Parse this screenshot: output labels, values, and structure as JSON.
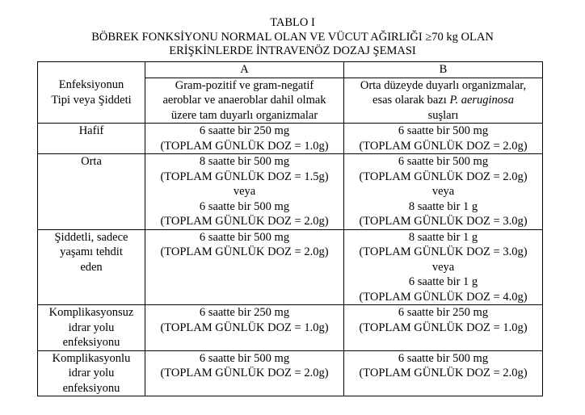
{
  "title": {
    "line1": "TABLO I",
    "line2": "BÖBREK FONKSİYONU NORMAL OLAN VE VÜCUT AĞIRLIĞI ≥70 kg OLAN",
    "line3": "ERİŞKİNLERDE İNTRAVENÖZ DOZAJ ŞEMASI"
  },
  "header": {
    "col_a_letter": "A",
    "col_b_letter": "B",
    "col0": [
      "Enfeksiyonun",
      "Tipi veya Şiddeti"
    ],
    "col_a": [
      "Gram-pozitif ve gram-negatif",
      "aeroblar ve anaeroblar dahil olmak",
      "üzere tam duyarlı organizmalar"
    ],
    "col_b_line1": "Orta düzeyde duyarlı organizmalar,",
    "col_b_line2_prefix": "esas olarak bazı ",
    "col_b_line2_italic": "P. aeruginosa",
    "col_b_line3": "suşları"
  },
  "rows": [
    {
      "type": [
        "Hafif"
      ],
      "a": [
        "6 saatte bir 250 mg",
        "(TOPLAM GÜNLÜK DOZ = 1.0g)"
      ],
      "b": [
        "6 saatte bir 500 mg",
        "(TOPLAM GÜNLÜK DOZ = 2.0g)"
      ]
    },
    {
      "type": [
        "Orta"
      ],
      "a": [
        "8 saatte bir 500 mg",
        "(TOPLAM GÜNLÜK DOZ = 1.5g)",
        "veya",
        "6 saatte bir 500 mg",
        "(TOPLAM GÜNLÜK DOZ = 2.0g)"
      ],
      "b": [
        "6 saatte bir 500 mg",
        "(TOPLAM GÜNLÜK DOZ = 2.0g)",
        "veya",
        "8 saatte bir 1 g",
        "(TOPLAM GÜNLÜK DOZ = 3.0g)"
      ]
    },
    {
      "type": [
        "Şiddetli, sadece",
        "yaşamı tehdit",
        "eden"
      ],
      "a": [
        "6 saatte bir 500 mg",
        "(TOPLAM GÜNLÜK DOZ = 2.0g)"
      ],
      "b": [
        "8 saatte bir 1 g",
        "(TOPLAM GÜNLÜK DOZ = 3.0g)",
        "veya",
        "6 saatte bir 1 g",
        "(TOPLAM GÜNLÜK DOZ = 4.0g)"
      ]
    },
    {
      "type": [
        "Komplikasyonsuz",
        "idrar yolu",
        "enfeksiyonu"
      ],
      "a": [
        "6 saatte bir 250 mg",
        "(TOPLAM GÜNLÜK DOZ = 1.0g)"
      ],
      "b": [
        "6 saatte bir 250 mg",
        "(TOPLAM GÜNLÜK DOZ = 1.0g)"
      ]
    },
    {
      "type": [
        "Komplikasyonlu",
        "idrar yolu",
        "enfeksiyonu"
      ],
      "a": [
        "6 saatte bir 500 mg",
        "(TOPLAM GÜNLÜK DOZ = 2.0g)"
      ],
      "b": [
        "6 saatte bir 500 mg",
        "(TOPLAM GÜNLÜK DOZ = 2.0g)"
      ]
    }
  ]
}
